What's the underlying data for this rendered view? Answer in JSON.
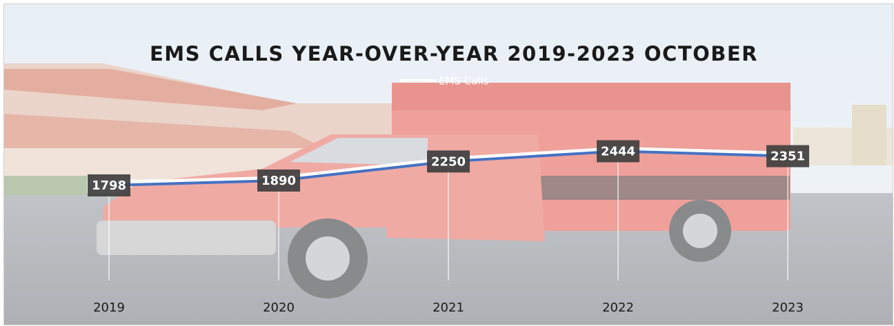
{
  "chart_data": {
    "type": "line",
    "title": "EMS CALLS YEAR-OVER-YEAR 2019-2023 OCTOBER",
    "categories": [
      "2019",
      "2020",
      "2021",
      "2022",
      "2023"
    ],
    "series": [
      {
        "name": "EMS Calls",
        "color": "#4472c4",
        "values": [
          1798,
          1890,
          2250,
          2444,
          2351
        ]
      }
    ],
    "ylim": [
      0,
      4000
    ],
    "data_labels": true,
    "drop_lines": true,
    "legend": "top"
  }
}
